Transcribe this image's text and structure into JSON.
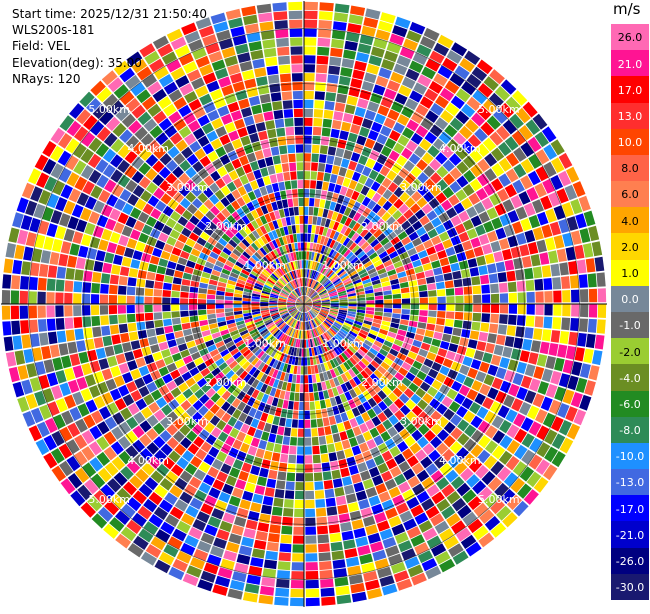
{
  "info": {
    "start_time": "Start time: 2025/12/31 21:50:40",
    "instrument": "WLS200s-181",
    "field": "Field: VEL",
    "elevation": "Elevation(deg): 35.00",
    "nrays": "NRays: 120"
  },
  "colorbar": {
    "unit": "m/s",
    "ticks": [
      "26.0",
      "21.0",
      "17.0",
      "13.0",
      "10.0",
      "8.0",
      "6.0",
      "4.0",
      "2.0",
      "1.0",
      "0.0",
      "-1.0",
      "-2.0",
      "-4.0",
      "-6.0",
      "-8.0",
      "-10.0",
      "-13.0",
      "-17.0",
      "-21.0",
      "-26.0",
      "-30.0"
    ],
    "colors": [
      "#ff69b4",
      "#ff1493",
      "#ff0000",
      "#ff2e2e",
      "#ff4500",
      "#ff6347",
      "#ff7f50",
      "#ffa500",
      "#ffd700",
      "#ffff00",
      "#778899",
      "#696969",
      "#9acd32",
      "#6b8e23",
      "#228b22",
      "#2e8b57",
      "#1e90ff",
      "#4169e1",
      "#0000ff",
      "#0000cd",
      "#000080",
      "#191970"
    ]
  },
  "chart_data": {
    "type": "heatmap",
    "title": "",
    "projection": "polar PPI",
    "field": "VEL",
    "units": "m/s",
    "nrays": 120,
    "value_range": [
      -30.0,
      26.0
    ],
    "range_rings_km": [
      "1.00km",
      "2.00km",
      "3.00km",
      "4.00km",
      "5.00km"
    ],
    "max_range_km": 5.5,
    "grid": true
  }
}
